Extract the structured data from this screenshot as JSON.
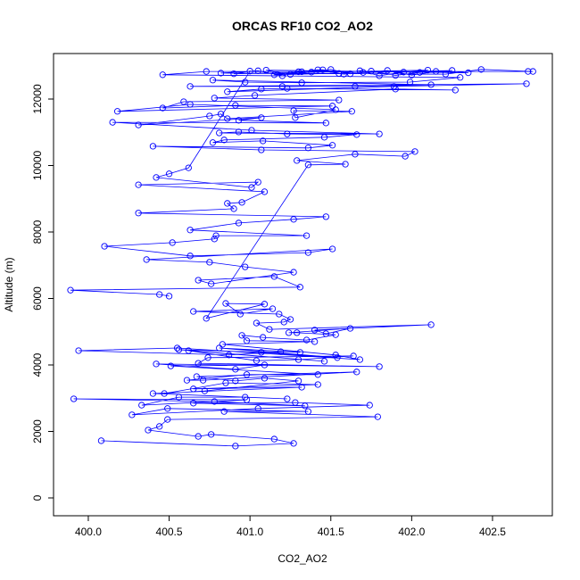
{
  "chart_data": {
    "type": "line",
    "title": "ORCAS RF10 CO2_AO2",
    "x_label": "CO2_AO2",
    "y_label": "Altitude (m)",
    "color": "#0000ff",
    "x": [
      400.08,
      400.91,
      401.27,
      401.15,
      400.76,
      400.68,
      400.37,
      400.44,
      400.49,
      401.79,
      400.84,
      401.36,
      400.49,
      400.27,
      401.05,
      401.74,
      401.28,
      400.65,
      401.34,
      400.78,
      399.91,
      400.98,
      400.33,
      400.56,
      400.97,
      401.23,
      400.4,
      401.32,
      400.65,
      401.42,
      400.85,
      400.47,
      400.72,
      401.3,
      401.09,
      400.91,
      400.67,
      401.66,
      400.71,
      400.61,
      400.98,
      401.42,
      400.51,
      401.09,
      400.91,
      400.42,
      401.8,
      400.68,
      400.74,
      401.64,
      401.3,
      401.04,
      400.62,
      401.46,
      400.56,
      401.07,
      401.54,
      400.81,
      401.31,
      401.19,
      400.87,
      399.94,
      400.55,
      401.68,
      401.53,
      400.83,
      401.4,
      400.98,
      400.95,
      401.08,
      401.35,
      401.53,
      401.29,
      401.24,
      401.62,
      401.47,
      401.4,
      402.12,
      401.12,
      401.04,
      401.21,
      401.25,
      401.18,
      400.65,
      401.14,
      400.94,
      400.85,
      401.09,
      400.73,
      401.36,
      401.59,
      401.29,
      401.65,
      401.96,
      402.02,
      401.07,
      400.4,
      401.36,
      401.51,
      401.08,
      400.77,
      400.84,
      401.46,
      401.66,
      401.23,
      400.93,
      400.81,
      401.8,
      401.01,
      400.15,
      401.47,
      400.93,
      401.07,
      400.31,
      400.75,
      400.82,
      400.86,
      401.63,
      401.27,
      401.28,
      401.53,
      400.63,
      400.18,
      401.51,
      400.91,
      400.46,
      400.59,
      401.55,
      400.78,
      401.03,
      401.9,
      402.27,
      401.23,
      401.07,
      400.86,
      401.89,
      402.71,
      400.63,
      401.2,
      401.65,
      402.12,
      400.77,
      400.97,
      401.32,
      401.99,
      402.3,
      400.46,
      400.73,
      402.72,
      402.75,
      402.43,
      402.21,
      400.82,
      401.05,
      401.2,
      401.32,
      401.45,
      401.58,
      401.7,
      401.85,
      402.0,
      402.15,
      402.35,
      401.1,
      401.25,
      401.38,
      401.5,
      401.62,
      401.75,
      401.9,
      402.05,
      402.25,
      401.15,
      401.3,
      401.42,
      401.55,
      401.68,
      401.8,
      401.95,
      402.1,
      400.9,
      401.0,
      400.62,
      400.5,
      400.42,
      401.01,
      401.05,
      400.31,
      401.09,
      400.95,
      400.86,
      400.9,
      400.31,
      401.47,
      401.27,
      400.93,
      400.63,
      401.35,
      400.79,
      400.78,
      400.52,
      400.1,
      400.63,
      401.36,
      401.51,
      400.36,
      400.75,
      400.97,
      401.27,
      400.76,
      400.68,
      401.15,
      401.31,
      399.89,
      400.44,
      400.5
    ],
    "values": [
      1720,
      1560,
      1640,
      1770,
      1910,
      1850,
      2040,
      2150,
      2360,
      2440,
      2600,
      2600,
      2690,
      2500,
      2690,
      2790,
      2870,
      2850,
      2770,
      2900,
      2980,
      2950,
      2790,
      3030,
      3030,
      2980,
      3140,
      3330,
      3280,
      3410,
      3460,
      3140,
      3220,
      3520,
      3600,
      3520,
      3650,
      3790,
      3540,
      3540,
      3710,
      3710,
      3970,
      4000,
      3870,
      4030,
      3950,
      4050,
      4220,
      4270,
      4160,
      4130,
      4430,
      4110,
      4460,
      4380,
      4220,
      4510,
      4380,
      4400,
      4300,
      4430,
      4510,
      4160,
      4300,
      4620,
      4700,
      4730,
      4890,
      4830,
      4750,
      4910,
      4970,
      4970,
      5100,
      4940,
      5050,
      5210,
      5070,
      5260,
      5290,
      5370,
      5530,
      5610,
      5690,
      5530,
      5850,
      5830,
      5400,
      10020,
      10040,
      10150,
      10340,
      10280,
      10420,
      10470,
      10580,
      10530,
      10610,
      10740,
      10690,
      10770,
      10850,
      10930,
      10950,
      11010,
      10980,
      10950,
      11060,
      11300,
      11280,
      11360,
      11440,
      11220,
      11490,
      11550,
      11410,
      11630,
      11650,
      11440,
      11680,
      11840,
      11630,
      11790,
      11810,
      11730,
      11920,
      11970,
      12030,
      12110,
      12300,
      12270,
      12320,
      12300,
      12220,
      12380,
      12460,
      12380,
      12380,
      12380,
      12430,
      12570,
      12510,
      12490,
      12510,
      12650,
      12730,
      12830,
      12830,
      12830,
      12890,
      12750,
      12780,
      12850,
      12700,
      12820,
      12880,
      12750,
      12800,
      12860,
      12720,
      12830,
      12790,
      12870,
      12740,
      12810,
      12890,
      12760,
      12840,
      12710,
      12800,
      12860,
      12730,
      12820,
      12880,
      12770,
      12850,
      12700,
      12810,
      12870,
      12760,
      12840,
      9930,
      9750,
      9640,
      9340,
      9500,
      9420,
      9210,
      8890,
      8860,
      8700,
      8570,
      8460,
      8380,
      8270,
      8060,
      7890,
      7890,
      7790,
      7680,
      7570,
      7280,
      7380,
      7490,
      7170,
      7090,
      6950,
      6790,
      6440,
      6550,
      6660,
      6340,
      6250,
      6120,
      6070
    ],
    "xlim": [
      399.785,
      402.87
    ],
    "ylim": [
      -537,
      13369
    ],
    "xticks": [
      {
        "value": 400,
        "label": "400.0"
      },
      {
        "value": 400.5,
        "label": "400.5"
      },
      {
        "value": 401,
        "label": "401.0"
      },
      {
        "value": 401.5,
        "label": "401.5"
      },
      {
        "value": 402,
        "label": "402.0"
      },
      {
        "value": 402.5,
        "label": "402.5"
      }
    ],
    "yticks": [
      0,
      2000,
      4000,
      6000,
      8000,
      10000,
      12000
    ]
  }
}
